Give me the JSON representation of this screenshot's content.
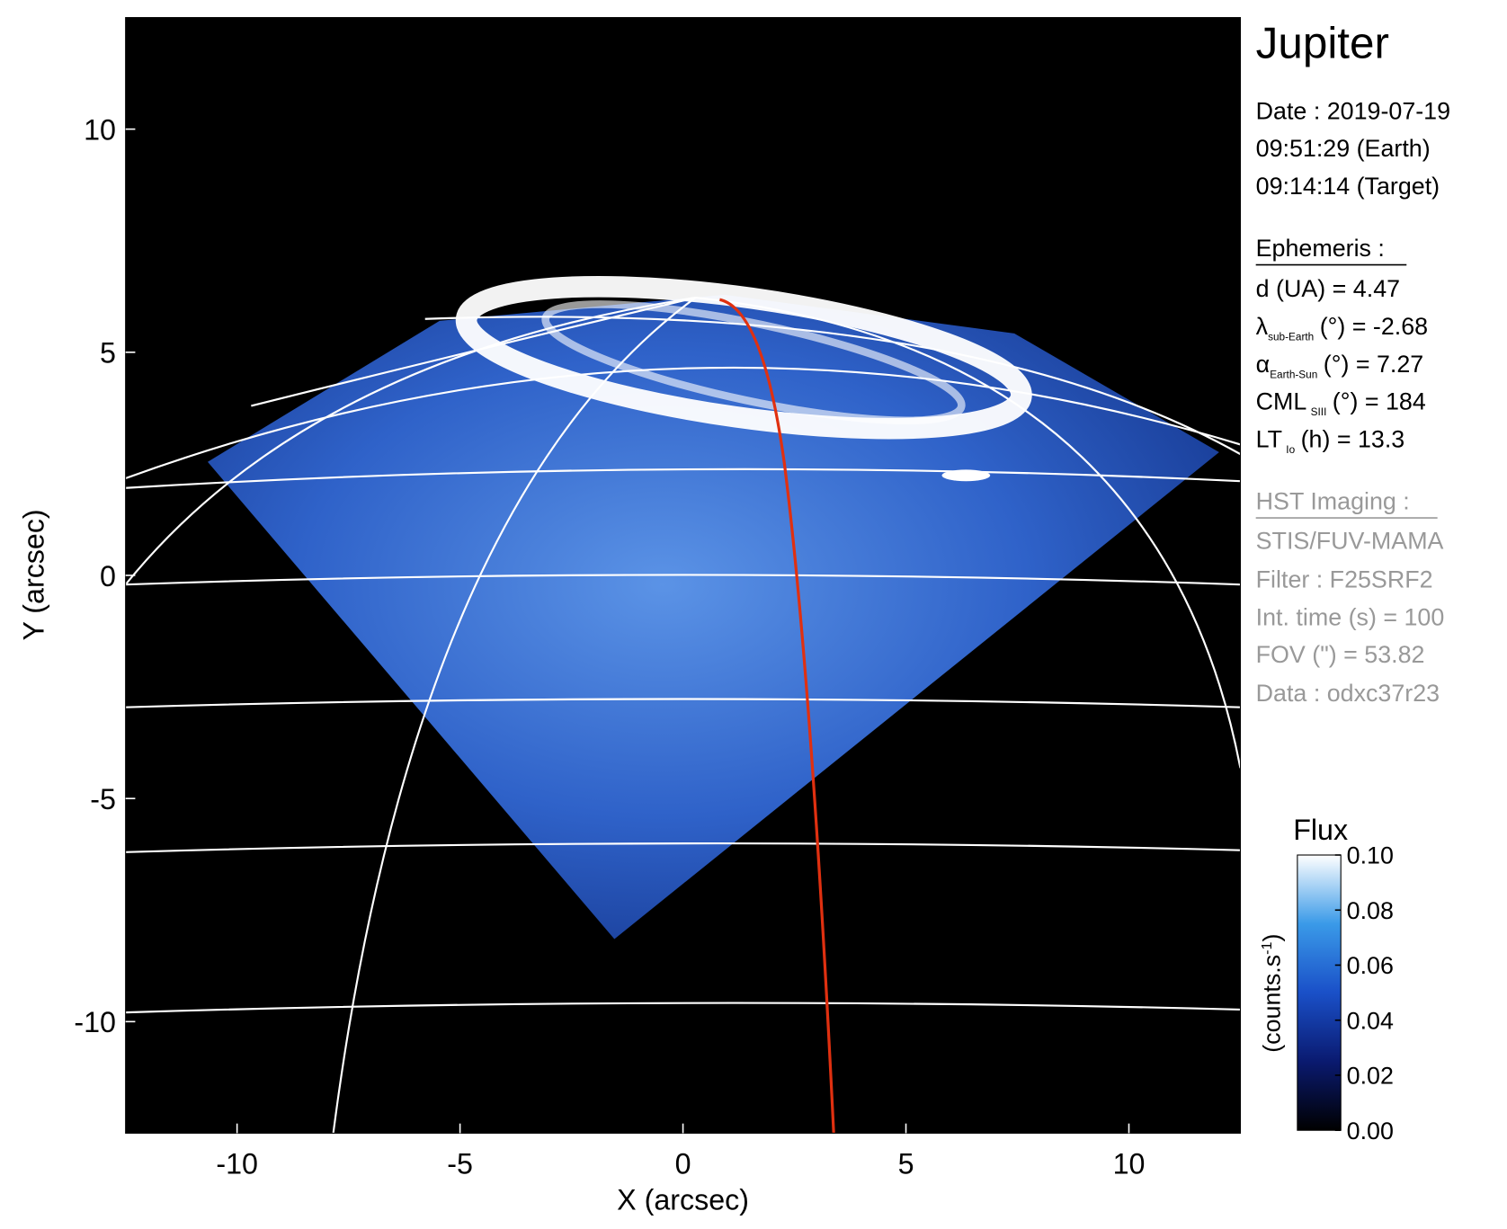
{
  "chart_data": {
    "type": "image",
    "title": "Jupiter",
    "x_label": "X (arcsec)",
    "y_label": "Y (arcsec)",
    "xlim": [
      -12.5,
      12.5
    ],
    "ylim": [
      -12.5,
      12.5
    ],
    "xticks": [
      -10,
      -5,
      0,
      5,
      10
    ],
    "yticks": [
      -10,
      -5,
      0,
      5,
      10
    ],
    "date_lines": [
      "Date : 2019-07-19",
      "09:51:29 (Earth)",
      "09:14:14 (Target)"
    ],
    "ephemeris_title": "Ephemeris :",
    "ephemeris": [
      {
        "main": "d (UA)    = 4.47"
      },
      {
        "main": "λ",
        "sub": "sub-Earth",
        "rest": "(°) = -2.68"
      },
      {
        "main": "α",
        "sub": "Earth-Sun",
        "rest": "(°) = 7.27"
      },
      {
        "main": "CML",
        "sub": "SIII",
        "rest": "(°) = 184"
      },
      {
        "main": "LT",
        "sub": "Io",
        "rest": "(h) = 13.3"
      }
    ],
    "imaging_title": "HST Imaging :",
    "imaging": [
      "STIS/FUV-MAMA",
      "Filter : F25SRF2",
      "Int. time (s) = 100",
      "FOV (\") = 53.82",
      "Data : odxc37r23"
    ],
    "colorbar": {
      "title": "Flux",
      "label": "(counts.s",
      "label_sup": "-1",
      "label_end": ")",
      "lim": [
        0,
        0.1
      ],
      "ticks": [
        {
          "value": 0,
          "label": "0.00"
        },
        {
          "value": 0.02,
          "label": "0.02"
        },
        {
          "value": 0.04,
          "label": "0.04"
        },
        {
          "value": 0.06,
          "label": "0.06"
        },
        {
          "value": 0.08,
          "label": "0.08"
        },
        {
          "value": 0.1,
          "label": "0.10"
        }
      ]
    }
  }
}
